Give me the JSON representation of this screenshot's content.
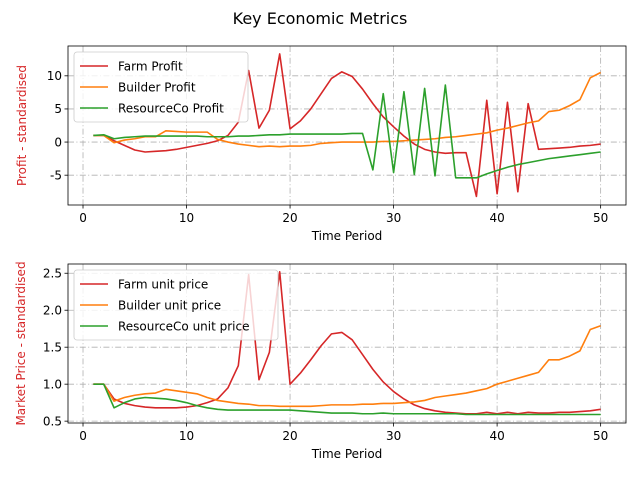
{
  "suptitle": "Key Economic Metrics",
  "chart_data": [
    {
      "type": "line",
      "ylabel": "Profit - standardised",
      "xlabel": "Time Period",
      "xlim": [
        -1.45,
        52.45
      ],
      "ylim": [
        -9.5,
        14.5
      ],
      "xticks": [
        0,
        10,
        20,
        30,
        40,
        50
      ],
      "yticks": [
        -5,
        0,
        5,
        10
      ],
      "grid": true,
      "legend_position": "upper-left",
      "x": [
        1,
        2,
        3,
        4,
        5,
        6,
        7,
        8,
        9,
        10,
        11,
        12,
        13,
        14,
        15,
        16,
        17,
        18,
        19,
        20,
        21,
        22,
        23,
        24,
        25,
        26,
        27,
        28,
        29,
        30,
        31,
        32,
        33,
        34,
        35,
        36,
        37,
        38,
        39,
        40,
        41,
        42,
        43,
        44,
        45,
        46,
        47,
        48,
        49,
        50
      ],
      "series": [
        {
          "name": "Farm Profit",
          "color": "#d62728",
          "values": [
            1.0,
            1.0,
            0.2,
            -0.5,
            -1.2,
            -1.5,
            -1.4,
            -1.3,
            -1.1,
            -0.8,
            -0.5,
            -0.2,
            0.2,
            1.0,
            3.0,
            10.8,
            2.1,
            4.8,
            13.3,
            2.0,
            3.2,
            5.0,
            7.3,
            9.6,
            10.6,
            9.9,
            8.0,
            5.8,
            3.8,
            2.3,
            0.9,
            -0.3,
            -1.1,
            -1.5,
            -1.7,
            -1.6,
            -1.6,
            -8.2,
            6.3,
            -7.8,
            6.0,
            -7.5,
            5.8,
            -1.1,
            -1.0,
            -0.9,
            -0.8,
            -0.6,
            -0.5,
            -0.3
          ]
        },
        {
          "name": "Builder Profit",
          "color": "#ff7f0e",
          "values": [
            1.0,
            1.0,
            -0.1,
            0.3,
            0.5,
            0.8,
            0.8,
            1.7,
            1.6,
            1.5,
            1.5,
            1.5,
            0.4,
            0.0,
            -0.3,
            -0.5,
            -0.7,
            -0.6,
            -0.7,
            -0.6,
            -0.6,
            -0.5,
            -0.2,
            -0.1,
            0.0,
            0.0,
            0.0,
            0.0,
            0.1,
            0.1,
            0.2,
            0.3,
            0.4,
            0.5,
            0.7,
            0.8,
            1.0,
            1.2,
            1.4,
            1.8,
            2.1,
            2.5,
            2.9,
            3.2,
            4.6,
            4.8,
            5.5,
            6.4,
            9.7,
            10.5
          ]
        },
        {
          "name": "ResourceCo Profit",
          "color": "#2ca02c",
          "values": [
            1.0,
            1.1,
            0.5,
            0.7,
            0.8,
            0.9,
            0.9,
            0.9,
            0.9,
            0.9,
            0.9,
            0.8,
            0.8,
            0.8,
            0.9,
            0.9,
            1.0,
            1.1,
            1.1,
            1.2,
            1.2,
            1.2,
            1.2,
            1.2,
            1.2,
            1.3,
            1.3,
            -4.2,
            7.3,
            -4.6,
            7.6,
            -4.9,
            8.1,
            -5.1,
            8.6,
            -5.4,
            -5.4,
            -5.4,
            -4.8,
            -4.3,
            -3.8,
            -3.4,
            -3.1,
            -2.8,
            -2.5,
            -2.3,
            -2.1,
            -1.9,
            -1.7,
            -1.5
          ]
        }
      ]
    },
    {
      "type": "line",
      "ylabel": "Market Price - standardised",
      "xlabel": "Time Period",
      "xlim": [
        -1.45,
        52.45
      ],
      "ylim": [
        0.475,
        2.625
      ],
      "xticks": [
        0,
        10,
        20,
        30,
        40,
        50
      ],
      "yticks": [
        0.5,
        1.0,
        1.5,
        2.0,
        2.5
      ],
      "ytick_labels": [
        "0.5",
        "1.0",
        "1.5",
        "2.0",
        "2.5"
      ],
      "grid": true,
      "legend_position": "upper-left",
      "x": [
        1,
        2,
        3,
        4,
        5,
        6,
        7,
        8,
        9,
        10,
        11,
        12,
        13,
        14,
        15,
        16,
        17,
        18,
        19,
        20,
        21,
        22,
        23,
        24,
        25,
        26,
        27,
        28,
        29,
        30,
        31,
        32,
        33,
        34,
        35,
        36,
        37,
        38,
        39,
        40,
        41,
        42,
        43,
        44,
        45,
        46,
        47,
        48,
        49,
        50
      ],
      "series": [
        {
          "name": "Farm unit price",
          "color": "#d62728",
          "values": [
            1.0,
            1.0,
            0.8,
            0.74,
            0.71,
            0.69,
            0.68,
            0.68,
            0.68,
            0.69,
            0.71,
            0.75,
            0.8,
            0.95,
            1.25,
            2.48,
            1.06,
            1.43,
            2.52,
            1.0,
            1.15,
            1.33,
            1.52,
            1.68,
            1.7,
            1.6,
            1.4,
            1.2,
            1.03,
            0.9,
            0.8,
            0.72,
            0.67,
            0.64,
            0.62,
            0.61,
            0.6,
            0.6,
            0.62,
            0.6,
            0.62,
            0.6,
            0.62,
            0.61,
            0.61,
            0.62,
            0.62,
            0.63,
            0.64,
            0.66
          ]
        },
        {
          "name": "Builder unit price",
          "color": "#ff7f0e",
          "values": [
            1.0,
            1.0,
            0.77,
            0.82,
            0.85,
            0.87,
            0.88,
            0.93,
            0.91,
            0.89,
            0.87,
            0.82,
            0.78,
            0.76,
            0.74,
            0.73,
            0.71,
            0.71,
            0.7,
            0.7,
            0.7,
            0.7,
            0.71,
            0.72,
            0.72,
            0.72,
            0.73,
            0.73,
            0.74,
            0.74,
            0.75,
            0.76,
            0.78,
            0.82,
            0.84,
            0.86,
            0.88,
            0.91,
            0.94,
            1.0,
            1.04,
            1.08,
            1.12,
            1.16,
            1.33,
            1.33,
            1.38,
            1.45,
            1.74,
            1.79
          ]
        },
        {
          "name": "ResourceCo unit price",
          "color": "#2ca02c",
          "values": [
            1.0,
            1.0,
            0.68,
            0.75,
            0.8,
            0.82,
            0.81,
            0.8,
            0.78,
            0.75,
            0.71,
            0.68,
            0.66,
            0.65,
            0.65,
            0.65,
            0.65,
            0.65,
            0.65,
            0.65,
            0.64,
            0.63,
            0.62,
            0.61,
            0.61,
            0.61,
            0.6,
            0.6,
            0.61,
            0.6,
            0.6,
            0.6,
            0.6,
            0.6,
            0.6,
            0.6,
            0.59,
            0.59,
            0.59,
            0.59,
            0.59,
            0.59,
            0.59,
            0.59,
            0.59,
            0.59,
            0.59,
            0.59,
            0.59,
            0.59
          ]
        }
      ]
    }
  ]
}
